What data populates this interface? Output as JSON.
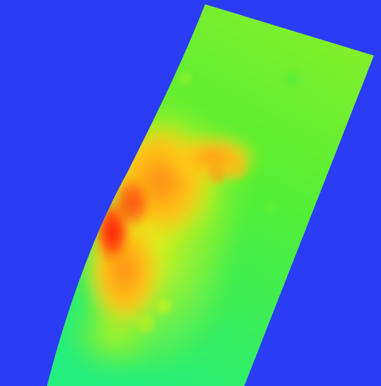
{
  "map": {
    "type": "elevation-heatmap-swath",
    "colors": {
      "background": "#2b3cf5",
      "low": "#22ee7a",
      "mid_low": "#6cf036",
      "mid": "#e8f21a",
      "mid_high": "#ffb010",
      "high": "#ff2a0a"
    }
  }
}
